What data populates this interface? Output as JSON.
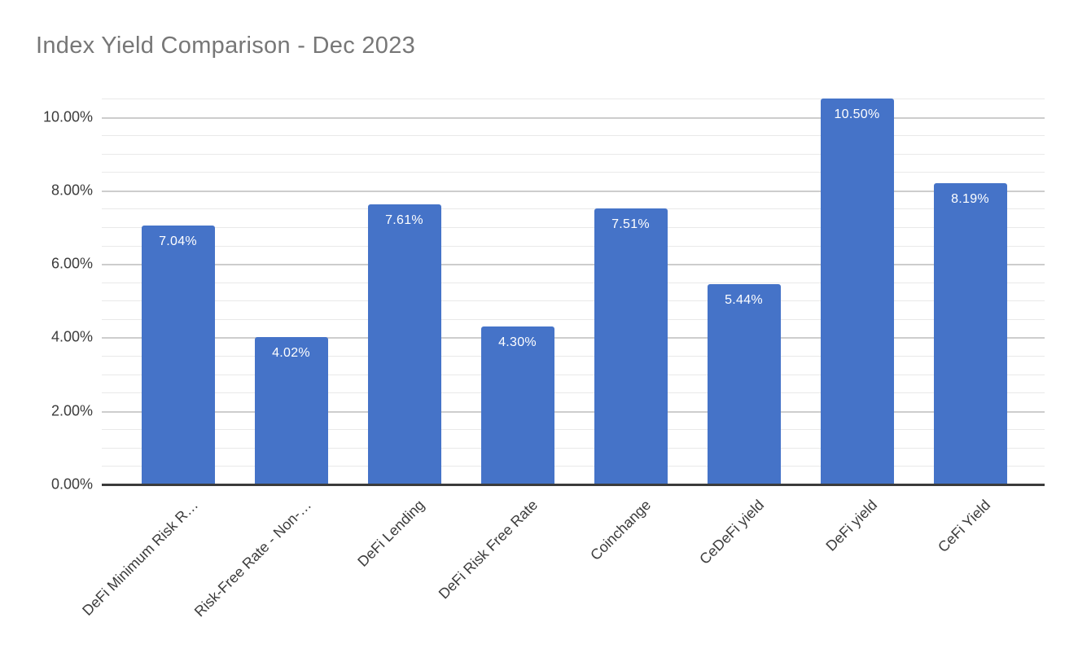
{
  "chart_data": {
    "type": "bar",
    "title": "Index Yield Comparison - Dec 2023",
    "categories": [
      "DeFi Minimum Risk R…",
      "Risk-Free Rate - Non-…",
      "DeFi Lending",
      "DeFi Risk Free Rate",
      "Coinchange",
      "CeDeFi yield",
      "DeFi yield",
      "CeFi Yield"
    ],
    "values": [
      7.04,
      4.02,
      7.61,
      4.3,
      7.51,
      5.44,
      10.5,
      8.19
    ],
    "bar_labels": [
      "7.04%",
      "4.02%",
      "7.61%",
      "4.30%",
      "7.51%",
      "5.44%",
      "10.50%",
      "8.19%"
    ],
    "xlabel": "",
    "ylabel": "",
    "ylim": [
      0,
      10.5
    ],
    "y_major_ticks": [
      {
        "value": 0,
        "label": "0.00%"
      },
      {
        "value": 2,
        "label": "2.00%"
      },
      {
        "value": 4,
        "label": "4.00%"
      },
      {
        "value": 6,
        "label": "6.00%"
      },
      {
        "value": 8,
        "label": "8.00%"
      },
      {
        "value": 10,
        "label": "10.00%"
      }
    ],
    "y_minor_step": 0.5,
    "grid": "horizontal major+minor",
    "legend_position": "none",
    "colors": {
      "bar": "#4573c8",
      "bar_label_text": "#ffffff",
      "title_text": "#777777",
      "axis_text": "#3c3c3c",
      "major_gridline": "#cdcdcd",
      "minor_gridline": "#e9e9e9",
      "axis_line": "#3b3b3b",
      "background": "#ffffff"
    }
  }
}
